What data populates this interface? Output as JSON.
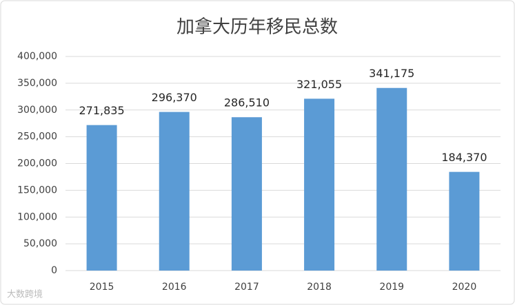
{
  "chart_data": {
    "type": "bar",
    "title": "加拿大历年移民总数",
    "categories": [
      "2015",
      "2016",
      "2017",
      "2018",
      "2019",
      "2020"
    ],
    "values": [
      271835,
      296370,
      286510,
      321055,
      341175,
      184370
    ],
    "value_labels": [
      "271,835",
      "296,370",
      "286,510",
      "321,055",
      "341,175",
      "184,370"
    ],
    "color": "#5b9bd5",
    "ylim": [
      0,
      400000
    ],
    "yticks": [
      0,
      {
        "value": 50000,
        "label": "50,000"
      },
      {
        "value": 100000,
        "label": "100,000"
      },
      {
        "value": 150000,
        "label": "150,000"
      },
      {
        "value": 200000,
        "label": "200,000"
      },
      {
        "value": 250000,
        "label": "250,000"
      },
      {
        "value": 300000,
        "label": "300,000"
      },
      {
        "value": 350000,
        "label": "350,000"
      },
      {
        "value": 400000,
        "label": "400,000"
      }
    ],
    "grid": true,
    "watermark": "大数跨境"
  }
}
